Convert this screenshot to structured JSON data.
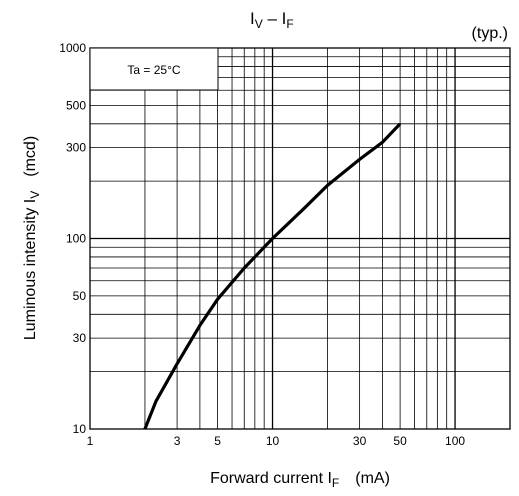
{
  "chart_data": {
    "type": "line",
    "title_main": "I",
    "title_sub1": "V",
    "title_sep": " – I",
    "title_sub2": "F",
    "note": "(typ.)",
    "condition": "Ta = 25°C",
    "xlabel_main": "Forward current   I",
    "xlabel_sub": "F",
    "xlabel_unit": "(mA)",
    "ylabel_main": "Luminous intensity   I",
    "ylabel_sub": "V",
    "ylabel_unit": "(mcd)",
    "x_scale": "log",
    "y_scale": "log",
    "xlim": [
      1,
      200
    ],
    "ylim": [
      10,
      1000
    ],
    "grid": true,
    "x_ticks": [
      1,
      3,
      5,
      10,
      30,
      50,
      100
    ],
    "y_ticks": [
      10,
      30,
      50,
      100,
      300,
      500,
      1000
    ],
    "series": [
      {
        "x": [
          2,
          2.3,
          3,
          4,
          5,
          7,
          10,
          15,
          20,
          30,
          40,
          50
        ],
        "y": [
          10,
          14,
          22,
          35,
          48,
          70,
          100,
          145,
          190,
          260,
          320,
          400
        ]
      }
    ]
  }
}
